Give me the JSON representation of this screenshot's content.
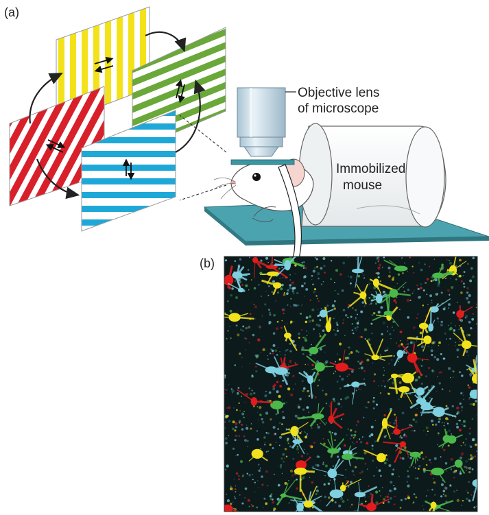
{
  "panels": {
    "a": {
      "label": "(a)"
    },
    "b": {
      "label": "(b)"
    }
  },
  "callouts": {
    "objective_line1": "Objective lens",
    "objective_line2": "of microscope",
    "mouse_line1": "Immobilized",
    "mouse_line2": "mouse"
  },
  "gratings": [
    {
      "name": "yellow-grating",
      "color": "#f3e21a",
      "orientation": "vertical",
      "motion": "horizontal"
    },
    {
      "name": "green-grating",
      "color": "#6aa83a",
      "orientation": "oblique",
      "motion": "oblique"
    },
    {
      "name": "red-grating",
      "color": "#d8202b",
      "orientation": "oblique",
      "motion": "oblique"
    },
    {
      "name": "blue-grating",
      "color": "#1ea8d8",
      "orientation": "horizontal",
      "motion": "vertical"
    }
  ],
  "colors": {
    "stage": "#4ba3b0",
    "micrograph_background": "#0c1a1c",
    "cell_red": "#e21c1c",
    "cell_cyan": "#7fd0e0",
    "cell_green": "#4bb84b",
    "cell_yellow": "#f1e21d"
  }
}
